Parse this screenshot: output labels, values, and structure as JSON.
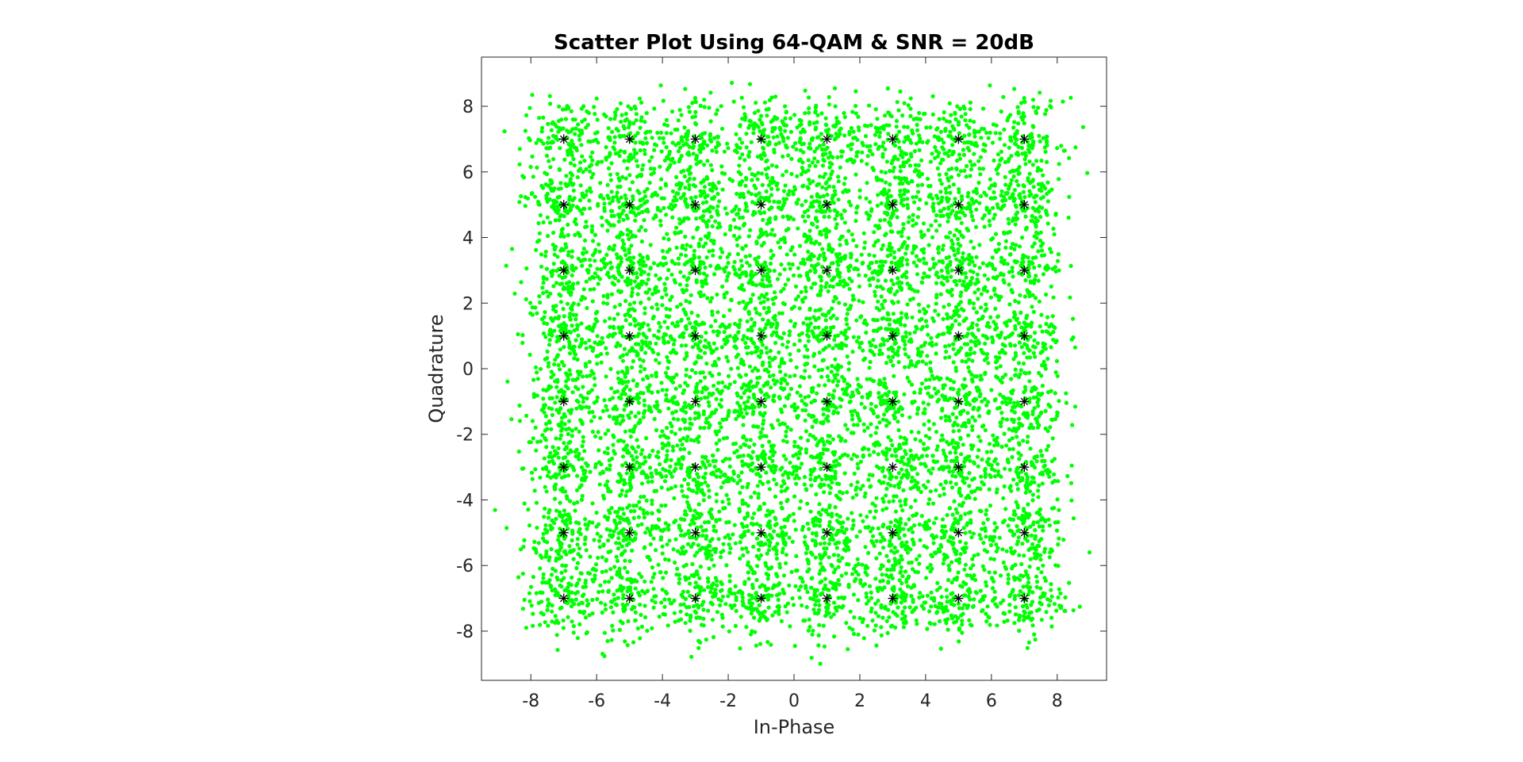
{
  "chart_data": {
    "type": "scatter",
    "title": "Scatter Plot Using 64-QAM & SNR = 20dB",
    "xlabel": "In-Phase",
    "ylabel": "Quadrature",
    "xlim": [
      -9.5,
      9.5
    ],
    "ylim": [
      -9.5,
      9.5
    ],
    "xticks": [
      -8,
      -6,
      -4,
      -2,
      0,
      2,
      4,
      6,
      8
    ],
    "yticks": [
      -8,
      -6,
      -4,
      -2,
      0,
      2,
      4,
      6,
      8
    ],
    "grid": false,
    "colors": {
      "received": "#00ff00",
      "constellation": "#000000",
      "axes": "#262626"
    },
    "series": [
      {
        "kind": "received-symbols",
        "marker": "dot",
        "centers_x": [
          -7,
          -5,
          -3,
          -1,
          1,
          3,
          5,
          7
        ],
        "centers_y": [
          -7,
          -5,
          -3,
          -1,
          1,
          3,
          5,
          7
        ],
        "points_per_center": 130,
        "spread": 0.6
      },
      {
        "kind": "ideal-constellation",
        "marker": "asterisk",
        "x": [
          -7,
          -5,
          -3,
          -1,
          1,
          3,
          5,
          7
        ],
        "y": [
          -7,
          -5,
          -3,
          -1,
          1,
          3,
          5,
          7
        ]
      }
    ]
  }
}
